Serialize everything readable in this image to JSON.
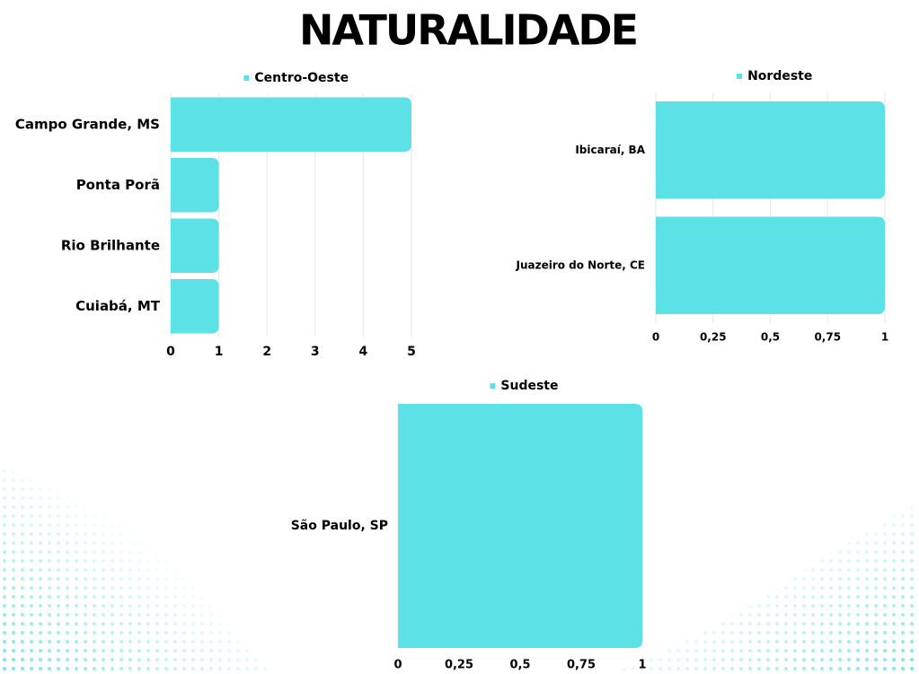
{
  "title": "NATURALIDADE",
  "chart_data": [
    {
      "type": "bar",
      "orientation": "horizontal",
      "categories": [
        "Campo Grande, MS",
        "Ponta Porã",
        "Rio Brilhante",
        "Cuiabá, MT"
      ],
      "series": [
        {
          "name": "Centro-Oeste",
          "color": "#5ce1e6",
          "values": [
            5,
            1,
            1,
            1
          ]
        }
      ],
      "xlim": [
        0,
        5
      ],
      "xticks": [
        0,
        1,
        2,
        3,
        4,
        5
      ],
      "grid": true,
      "legend": "top"
    },
    {
      "type": "bar",
      "orientation": "horizontal",
      "categories": [
        "Ibicaraí, BA",
        "Juazeiro do Norte, CE"
      ],
      "series": [
        {
          "name": "Nordeste",
          "color": "#5ce1e6",
          "values": [
            1,
            1
          ]
        }
      ],
      "xlim": [
        0,
        1
      ],
      "xticks": [
        0,
        {
          "value": 0.25,
          "label": "0,25"
        },
        {
          "value": 0.5,
          "label": "0,5"
        },
        {
          "value": 0.75,
          "label": "0,75"
        },
        1
      ],
      "grid": true,
      "legend": "top"
    },
    {
      "type": "bar",
      "orientation": "horizontal",
      "categories": [
        "São Paulo, SP"
      ],
      "series": [
        {
          "name": "Sudeste",
          "color": "#5ce1e6",
          "values": [
            1
          ]
        }
      ],
      "xlim": [
        0,
        1
      ],
      "xticks": [
        0,
        {
          "value": 0.25,
          "label": "0,25"
        },
        {
          "value": 0.5,
          "label": "0,5"
        },
        {
          "value": 0.75,
          "label": "0,75"
        },
        1
      ],
      "grid": true,
      "legend": "top"
    }
  ]
}
